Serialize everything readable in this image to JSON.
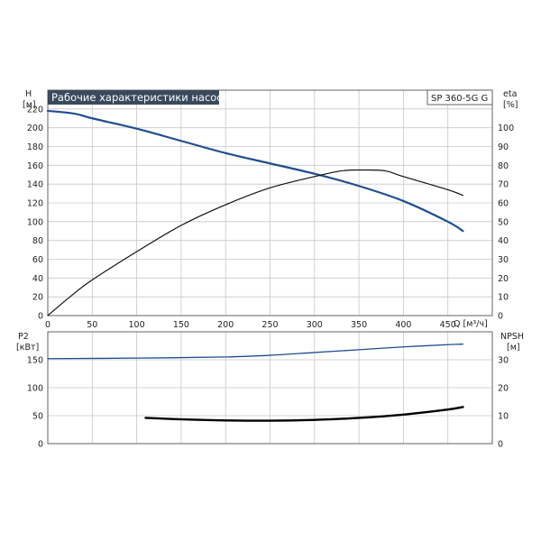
{
  "chart_data": [
    {
      "type": "line",
      "panel": "top",
      "title": "Рабочие характеристики насоса",
      "model": "SP 360-5G G",
      "xlabel": "Q [м³/ч]",
      "ylabel": "H",
      "ylabel_unit": "[м]",
      "y2label": "eta",
      "y2label_unit": "[%]",
      "xlim": [
        0,
        500
      ],
      "ylim": [
        0,
        240
      ],
      "y2lim": [
        0,
        120
      ],
      "x_ticks": [
        "0",
        "50",
        "100",
        "150",
        "200",
        "250",
        "300",
        "350",
        "400",
        "450"
      ],
      "y_ticks": [
        "0",
        "20",
        "40",
        "60",
        "80",
        "100",
        "120",
        "140",
        "160",
        "180",
        "200",
        "220"
      ],
      "y2_ticks": [
        "0",
        "10",
        "20",
        "30",
        "40",
        "50",
        "60",
        "70",
        "80",
        "90",
        "100"
      ],
      "grid": true,
      "series": [
        {
          "axis": "left",
          "color": "#1f4f8f",
          "x": [
            0,
            30,
            50,
            100,
            150,
            200,
            250,
            300,
            350,
            400,
            450,
            467
          ],
          "y": [
            218,
            215,
            210,
            199,
            186,
            173,
            162,
            151,
            138,
            122,
            100,
            90
          ]
        },
        {
          "axis": "right",
          "color": "#111111",
          "x": [
            0,
            25,
            50,
            100,
            150,
            200,
            250,
            300,
            330,
            355,
            380,
            400,
            450,
            467
          ],
          "y": [
            0,
            10,
            19,
            34,
            48,
            59,
            68,
            74,
            77,
            77.5,
            77,
            74,
            67,
            64
          ]
        }
      ]
    },
    {
      "type": "line",
      "panel": "bottom",
      "ylabel": "P2",
      "ylabel_unit": "[кВт]",
      "y2label": "NPSH",
      "y2label_unit": "[м]",
      "xlim": [
        0,
        500
      ],
      "ylim": [
        0,
        200
      ],
      "y2lim": [
        0,
        40
      ],
      "y_ticks": [
        "0",
        "50",
        "100",
        "150"
      ],
      "y2_ticks": [
        "0",
        "10",
        "20",
        "30"
      ],
      "grid": true,
      "series": [
        {
          "axis": "left",
          "color": "#1f4f8f",
          "x": [
            0,
            100,
            200,
            250,
            300,
            350,
            400,
            450,
            467
          ],
          "y": [
            152,
            153,
            155,
            158,
            163,
            168,
            173,
            177,
            178
          ]
        },
        {
          "axis": "right",
          "color": "#000000",
          "x": [
            110,
            150,
            200,
            250,
            300,
            350,
            400,
            450,
            467
          ],
          "y": [
            9.2,
            8.7,
            8.3,
            8.2,
            8.5,
            9.2,
            10.4,
            12.2,
            13.1
          ]
        }
      ]
    }
  ]
}
